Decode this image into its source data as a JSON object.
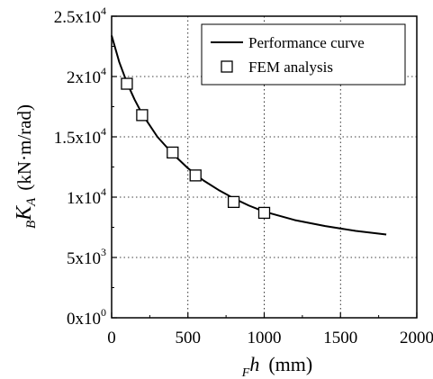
{
  "chart_data": {
    "type": "line",
    "xlabel": {
      "subscript": "F",
      "symbol": "h",
      "unit": "(mm)"
    },
    "ylabel": {
      "subscript": "B",
      "symbol": "K",
      "symbol_subscript": "A",
      "unit": "(kN·m/rad)"
    },
    "xlim": [
      0,
      2000
    ],
    "ylim": [
      0,
      25000
    ],
    "x_ticks": [
      {
        "value": 0,
        "label": "0"
      },
      {
        "value": 500,
        "label": "500"
      },
      {
        "value": 1000,
        "label": "1000"
      },
      {
        "value": 1500,
        "label": "1500"
      },
      {
        "value": 2000,
        "label": "2000"
      }
    ],
    "y_ticks": [
      {
        "value": 0,
        "mantissa": "0x10",
        "exp": "0"
      },
      {
        "value": 5000,
        "mantissa": "5x10",
        "exp": "3"
      },
      {
        "value": 10000,
        "mantissa": "1x10",
        "exp": "4"
      },
      {
        "value": 15000,
        "mantissa": "1.5x10",
        "exp": "4"
      },
      {
        "value": 20000,
        "mantissa": "2x10",
        "exp": "4"
      },
      {
        "value": 25000,
        "mantissa": "2.5x10",
        "exp": "4"
      }
    ],
    "grid": true,
    "grid_style": "dotted",
    "legend_position": "top-right",
    "series": [
      {
        "name": "Performance curve",
        "style": "line",
        "color": "#000000",
        "x": [
          0,
          50,
          100,
          150,
          200,
          300,
          400,
          500,
          600,
          700,
          800,
          900,
          1000,
          1200,
          1400,
          1600,
          1800
        ],
        "y": [
          23400,
          21200,
          19500,
          18100,
          16900,
          15000,
          13600,
          12400,
          11400,
          10600,
          9900,
          9300,
          8800,
          8100,
          7600,
          7200,
          6900
        ]
      },
      {
        "name": "FEM analysis",
        "style": "marker",
        "marker": "open-square",
        "color": "#000000",
        "x": [
          100,
          200,
          400,
          550,
          800,
          1000
        ],
        "y": [
          19400,
          16800,
          13700,
          11800,
          9600,
          8700
        ]
      }
    ]
  }
}
